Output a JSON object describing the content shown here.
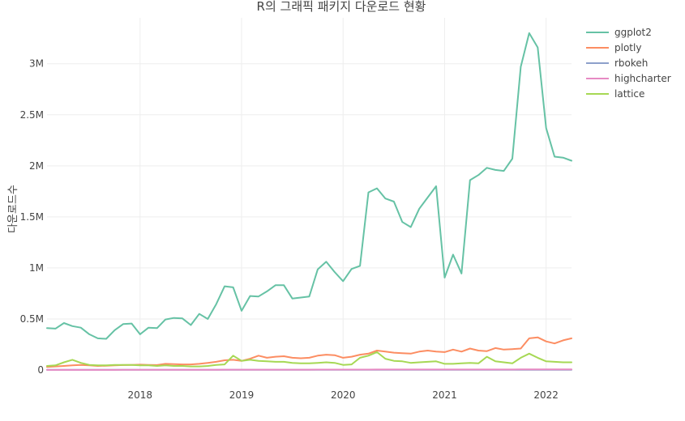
{
  "chart_data": {
    "type": "line",
    "title": "R의 그래픽 패키지 다운로드 현황",
    "xlabel": "",
    "ylabel": "다운로드수",
    "x": [
      "2017-02",
      "2017-03",
      "2017-04",
      "2017-05",
      "2017-06",
      "2017-07",
      "2017-08",
      "2017-09",
      "2017-10",
      "2017-11",
      "2017-12",
      "2018-01",
      "2018-02",
      "2018-03",
      "2018-04",
      "2018-05",
      "2018-06",
      "2018-07",
      "2018-08",
      "2018-09",
      "2018-10",
      "2018-11",
      "2018-12",
      "2019-01",
      "2019-02",
      "2019-03",
      "2019-04",
      "2019-05",
      "2019-06",
      "2019-07",
      "2019-08",
      "2019-09",
      "2019-10",
      "2019-11",
      "2019-12",
      "2020-01",
      "2020-02",
      "2020-03",
      "2020-04",
      "2020-05",
      "2020-06",
      "2020-07",
      "2020-08",
      "2020-09",
      "2020-10",
      "2020-11",
      "2020-12",
      "2021-01",
      "2021-02",
      "2021-03",
      "2021-04",
      "2021-05",
      "2021-06",
      "2021-07",
      "2021-08",
      "2021-09",
      "2021-10",
      "2021-11",
      "2021-12",
      "2022-01",
      "2022-02",
      "2022-03",
      "2022-04"
    ],
    "xlim": [
      "2017-02",
      "2022-04"
    ],
    "xticks": [
      "2018",
      "2019",
      "2020",
      "2021",
      "2022"
    ],
    "ylim": [
      0,
      3450000
    ],
    "yticks": [
      0,
      500000,
      1000000,
      1500000,
      2000000,
      2500000,
      3000000
    ],
    "ytick_labels": [
      "0",
      "0.5M",
      "1M",
      "1.5M",
      "2M",
      "2.5M",
      "3M"
    ],
    "grid": true,
    "legend_position": "top-right",
    "series": [
      {
        "name": "ggplot2",
        "color": "#66c2a5",
        "values": [
          410000,
          405000,
          460000,
          430000,
          415000,
          350000,
          310000,
          305000,
          390000,
          450000,
          455000,
          350000,
          415000,
          410000,
          495000,
          510000,
          505000,
          440000,
          550000,
          500000,
          645000,
          820000,
          810000,
          580000,
          725000,
          720000,
          770000,
          830000,
          830000,
          700000,
          710000,
          720000,
          985000,
          1060000,
          960000,
          870000,
          990000,
          1020000,
          1740000,
          1780000,
          1680000,
          1650000,
          1450000,
          1400000,
          1580000,
          1690000,
          1800000,
          905000,
          1130000,
          945000,
          1860000,
          1910000,
          1980000,
          1960000,
          1950000,
          2070000,
          2970000,
          3300000,
          3160000,
          2370000,
          2090000,
          2080000,
          2050000
        ]
      },
      {
        "name": "plotly",
        "color": "#fc8d62",
        "values": [
          30000,
          35000,
          40000,
          45000,
          50000,
          45000,
          40000,
          42000,
          45000,
          48000,
          50000,
          52000,
          50000,
          48000,
          60000,
          58000,
          55000,
          55000,
          60000,
          70000,
          80000,
          95000,
          100000,
          90000,
          110000,
          140000,
          120000,
          130000,
          135000,
          120000,
          115000,
          120000,
          140000,
          150000,
          145000,
          120000,
          130000,
          150000,
          160000,
          190000,
          180000,
          170000,
          165000,
          160000,
          180000,
          190000,
          180000,
          175000,
          200000,
          180000,
          210000,
          190000,
          185000,
          215000,
          200000,
          205000,
          210000,
          310000,
          320000,
          280000,
          260000,
          290000,
          310000
        ]
      },
      {
        "name": "rbokeh",
        "color": "#8da0cb",
        "values": [
          2000,
          2000,
          2000,
          2000,
          2000,
          2000,
          2000,
          2000,
          2000,
          2000,
          2000,
          2000,
          2000,
          2000,
          2000,
          2000,
          2000,
          2000,
          2000,
          2000,
          2000,
          2000,
          2000,
          2000,
          2000,
          2000,
          2000,
          2000,
          2000,
          2000,
          2000,
          2000,
          2000,
          2000,
          2000,
          2000,
          2000,
          2000,
          2000,
          2000,
          2000,
          2000,
          2000,
          2000,
          2000,
          2000,
          2000,
          2000,
          2000,
          2000,
          2000,
          2000,
          2000,
          2000,
          2000,
          2000,
          2000,
          2000,
          2000,
          2000,
          2000,
          2000,
          2000
        ]
      },
      {
        "name": "highcharter",
        "color": "#e78ac3",
        "values": [
          1000,
          1000,
          1000,
          1000,
          1000,
          1000,
          1000,
          1000,
          1000,
          2000,
          2000,
          2000,
          2000,
          2000,
          2000,
          2000,
          2000,
          2000,
          2000,
          2000,
          2000,
          3000,
          3000,
          3000,
          3000,
          3000,
          3000,
          3000,
          3000,
          3000,
          3000,
          3000,
          4000,
          4000,
          4000,
          4000,
          4000,
          4000,
          4000,
          5000,
          5000,
          5000,
          5000,
          5000,
          5000,
          5000,
          5000,
          5000,
          5000,
          5000,
          5000,
          5000,
          5000,
          5000,
          5000,
          5000,
          6000,
          6000,
          6000,
          6000,
          6000,
          6000,
          6000
        ]
      },
      {
        "name": "lattice",
        "color": "#a6d854",
        "values": [
          40000,
          45000,
          75000,
          100000,
          70000,
          50000,
          45000,
          45000,
          50000,
          50000,
          50000,
          45000,
          45000,
          40000,
          45000,
          40000,
          40000,
          35000,
          35000,
          40000,
          50000,
          55000,
          140000,
          90000,
          100000,
          90000,
          85000,
          80000,
          80000,
          70000,
          65000,
          65000,
          70000,
          75000,
          70000,
          50000,
          55000,
          120000,
          140000,
          175000,
          110000,
          90000,
          85000,
          70000,
          75000,
          80000,
          85000,
          60000,
          60000,
          65000,
          70000,
          65000,
          130000,
          85000,
          75000,
          65000,
          120000,
          160000,
          120000,
          85000,
          80000,
          75000,
          75000
        ]
      }
    ]
  }
}
